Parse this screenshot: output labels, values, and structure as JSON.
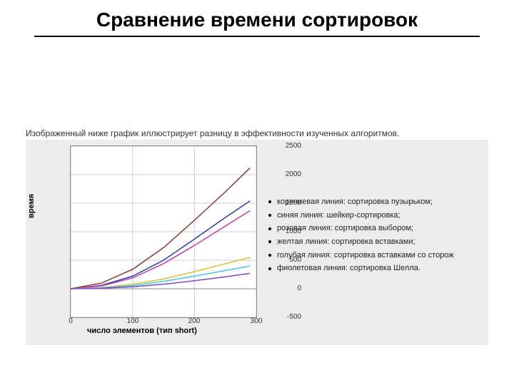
{
  "title": "Сравнение времени сортировок",
  "caption": "Изображенный ниже график иллюстрирует разницу в эффективности изученных алгоритмов.",
  "chart": {
    "type": "line",
    "background_color": "#ececec",
    "plot_bg": "#ffffff",
    "plot_border": "#888888",
    "grid_color": "#cccccc",
    "xlabel": "число элементов (тип short)",
    "ylabel": "время",
    "label_fontsize": 11,
    "tick_fontsize": 10,
    "xlim": [
      0,
      300
    ],
    "ylim": [
      -500,
      2500
    ],
    "xticks": [
      0,
      100,
      200,
      300
    ],
    "yticks": [
      -500,
      0,
      500,
      1000,
      1500,
      2000,
      2500
    ],
    "line_width": 1.5,
    "series": [
      {
        "name": "brown",
        "color": "#8b3a2e",
        "x": [
          0,
          50,
          100,
          150,
          200,
          250,
          290
        ],
        "y": [
          0,
          100,
          340,
          720,
          1200,
          1700,
          2120
        ]
      },
      {
        "name": "blue",
        "color": "#2b3ea8",
        "x": [
          0,
          50,
          100,
          150,
          200,
          250,
          290
        ],
        "y": [
          0,
          60,
          220,
          500,
          870,
          1250,
          1540
        ]
      },
      {
        "name": "magenta",
        "color": "#c23da8",
        "x": [
          0,
          50,
          100,
          150,
          200,
          250,
          290
        ],
        "y": [
          0,
          50,
          190,
          440,
          760,
          1100,
          1370
        ]
      },
      {
        "name": "yellow",
        "color": "#d6c23a",
        "x": [
          0,
          50,
          100,
          150,
          200,
          250,
          290
        ],
        "y": [
          0,
          20,
          80,
          170,
          300,
          440,
          550
        ]
      },
      {
        "name": "cyan",
        "color": "#49c6d6",
        "x": [
          0,
          50,
          100,
          150,
          200,
          250,
          290
        ],
        "y": [
          0,
          15,
          55,
          130,
          220,
          320,
          400
        ]
      },
      {
        "name": "violet",
        "color": "#7a4bc4",
        "x": [
          0,
          50,
          100,
          150,
          200,
          250,
          290
        ],
        "y": [
          0,
          10,
          35,
          80,
          140,
          210,
          270
        ]
      }
    ]
  },
  "legend": {
    "fontsize": 11,
    "text_color": "#222222",
    "items": [
      "коричневая линия: сортировка пузырьком;",
      "синяя линия: шейкер-сортировка;",
      "розовая линия: сортировка выбором;",
      "желтая линия: сортировка вставками;",
      "голубая линия: сортировка вставками со сторож",
      "фиолетовая линия: сортировка Шелла."
    ]
  }
}
